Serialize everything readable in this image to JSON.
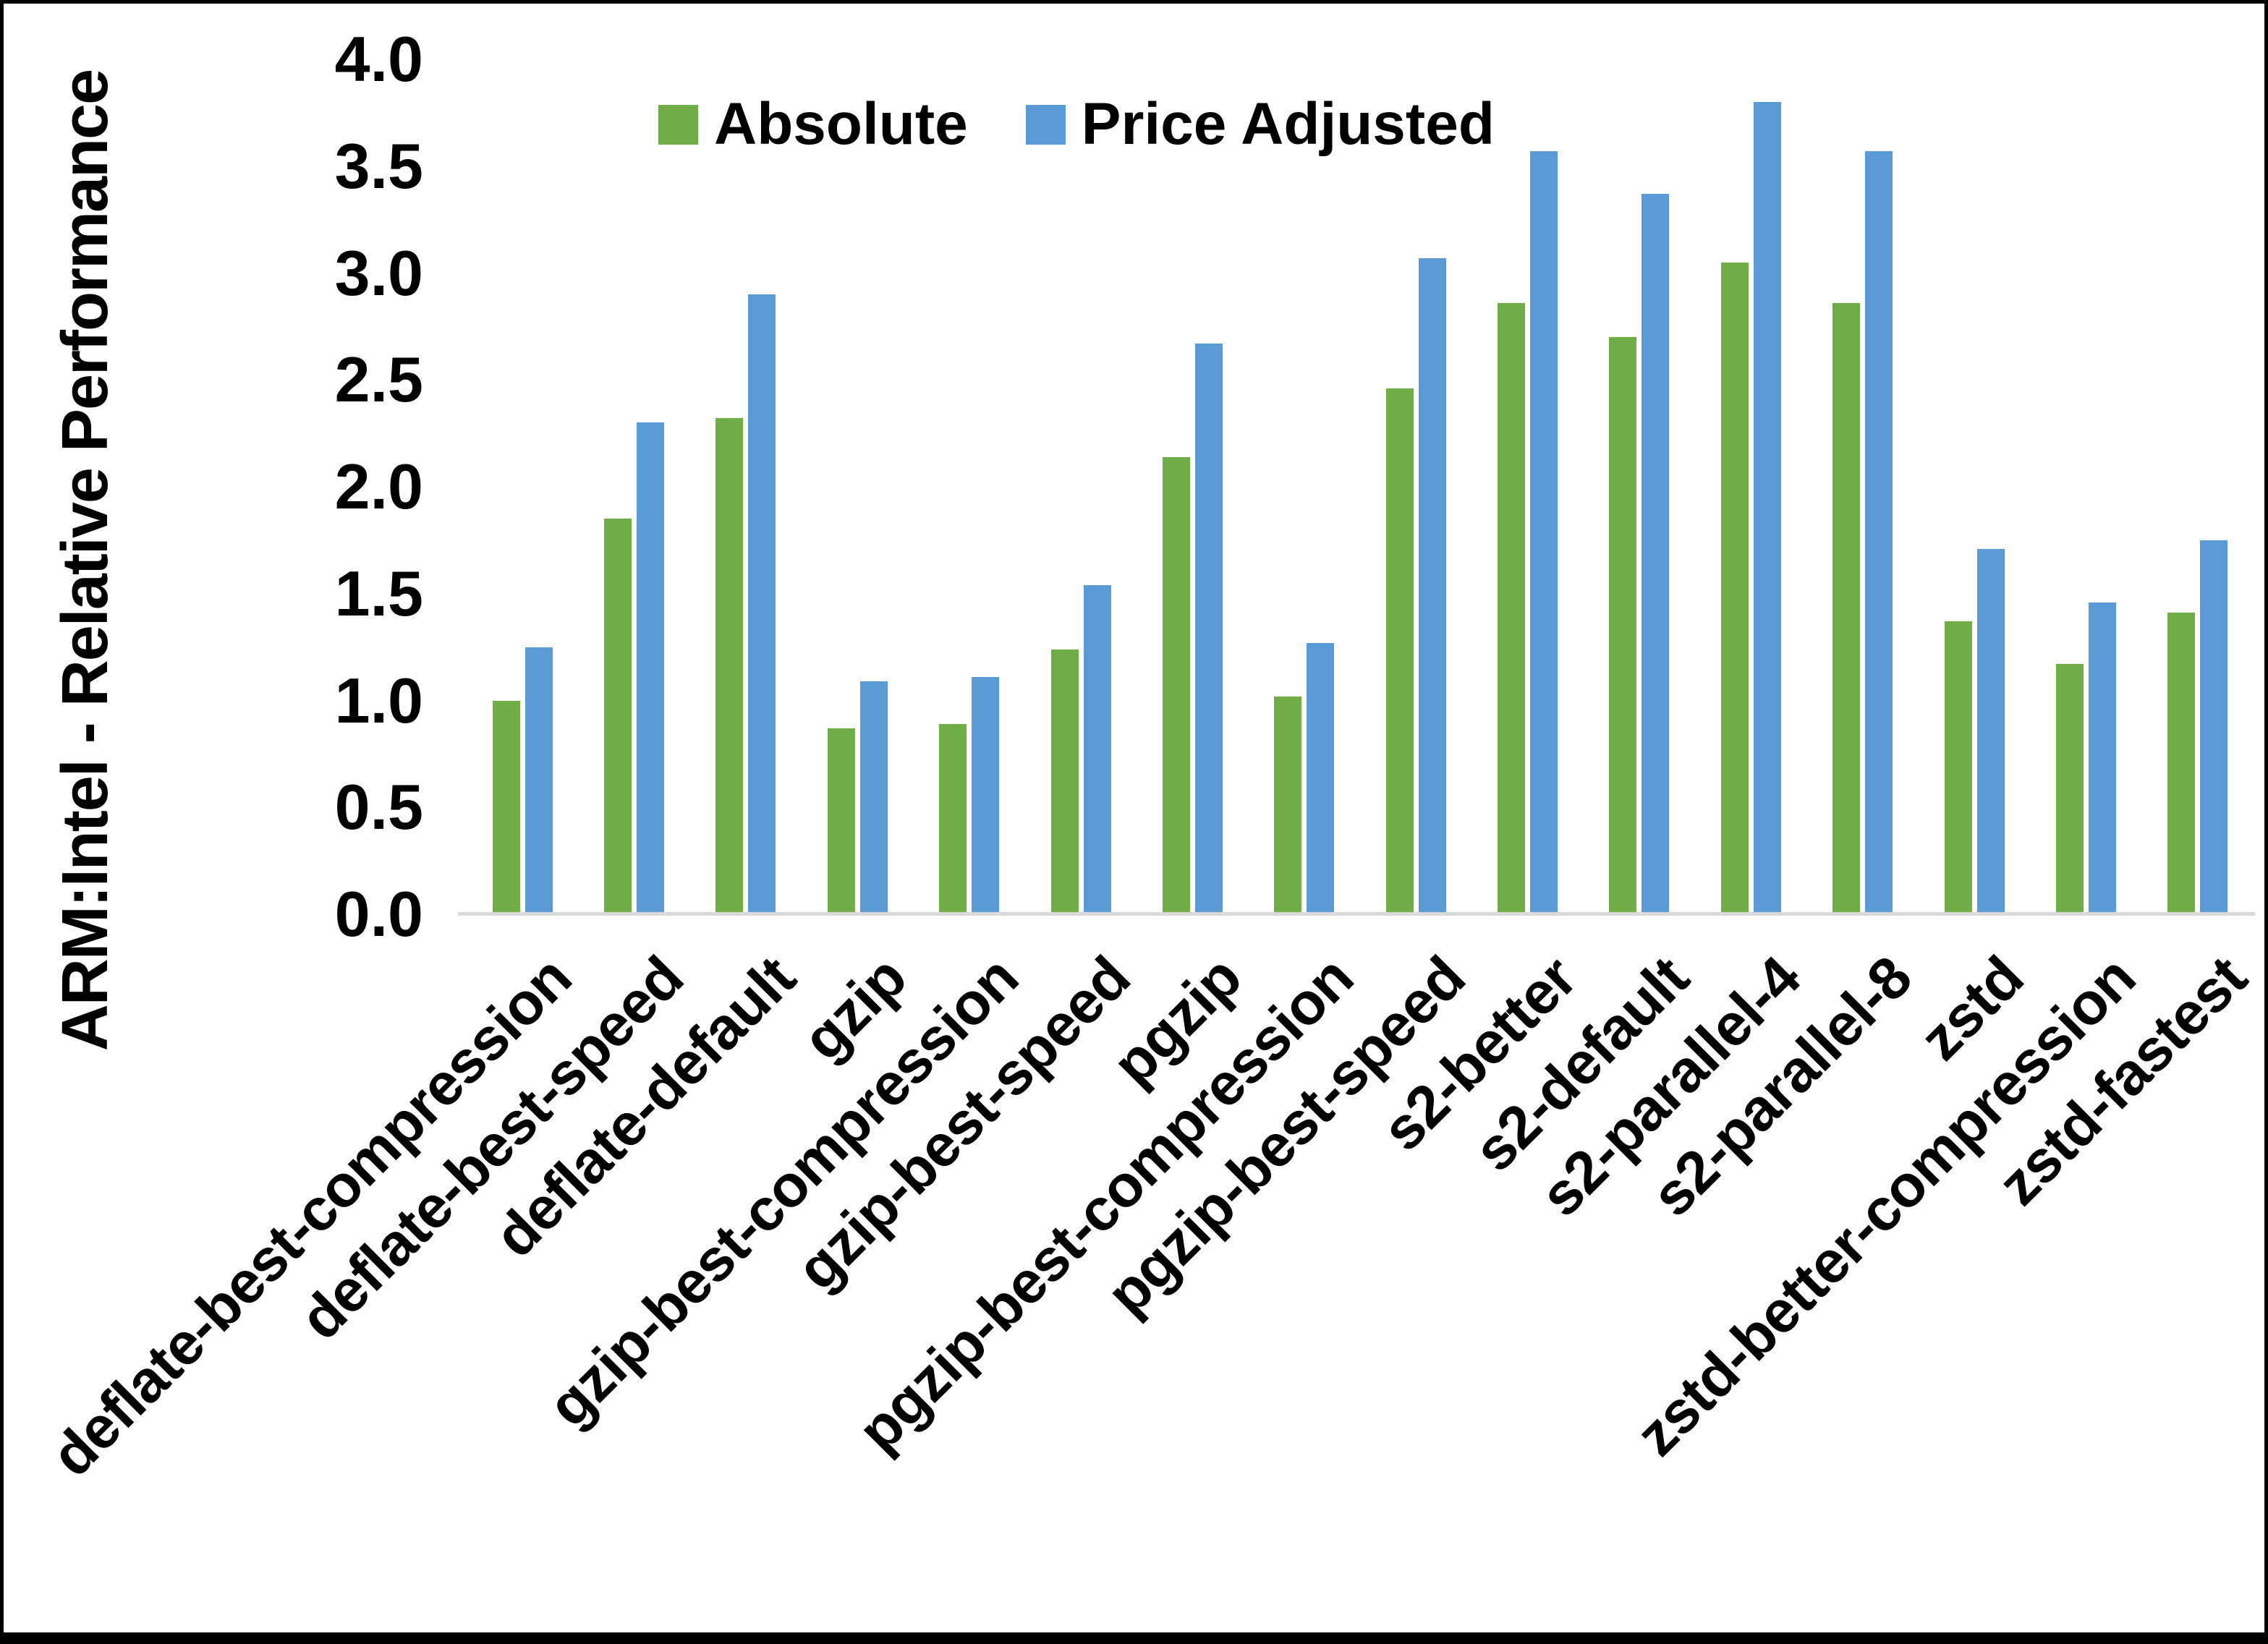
{
  "chart_data": {
    "type": "bar",
    "title": "",
    "xlabel": "",
    "ylabel": "ARM:Intel - Relative Performance",
    "ylim": [
      0,
      4.0
    ],
    "ytick_step": 0.5,
    "ytick_labels": [
      "0.0",
      "0.5",
      "1.0",
      "1.5",
      "2.0",
      "2.5",
      "3.0",
      "3.5",
      "4.0"
    ],
    "grid": false,
    "legend_position": "top-center",
    "categories": [
      "deflate-best-compression",
      "deflate-best-speed",
      "deflate-default",
      "gzip",
      "gzip-best-compression",
      "gzip-best-speed",
      "pgzip",
      "pgzip-best-compression",
      "pgzip-best-speed",
      "s2-better",
      "s2-default",
      "s2-parallel-4",
      "s2-parallel-8",
      "zstd",
      "zstd-better-compression",
      "zstd-fastest"
    ],
    "series": [
      {
        "name": "Absolute",
        "color": "#70AD47",
        "values": [
          1.0,
          1.85,
          2.32,
          0.87,
          0.89,
          1.24,
          2.14,
          1.02,
          2.46,
          2.86,
          2.7,
          3.05,
          2.86,
          1.37,
          1.17,
          1.41
        ]
      },
      {
        "name": "Price Adjusted",
        "color": "#5B9BD5",
        "values": [
          1.25,
          2.3,
          2.9,
          1.09,
          1.11,
          1.54,
          2.67,
          1.27,
          3.07,
          3.57,
          3.37,
          3.8,
          3.57,
          1.71,
          1.46,
          1.75
        ]
      }
    ]
  },
  "colors": {
    "axis_line": "#D9D9D9",
    "text": "#000000",
    "background": "#FFFFFF",
    "border": "#000000"
  }
}
